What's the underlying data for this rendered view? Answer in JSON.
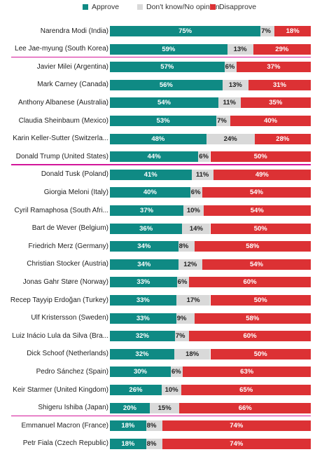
{
  "legend": [
    {
      "label": "Approve",
      "color": "#0f8a84"
    },
    {
      "label": "Don't know/No opinion",
      "color": "#d9d9d9"
    },
    {
      "label": "Disapprove",
      "color": "#dc3134"
    }
  ],
  "highlight_color": "#d3169a",
  "chart_data": {
    "type": "bar",
    "stacked": true,
    "orientation": "horizontal",
    "xlim": [
      0,
      100
    ],
    "categories": [
      "Narendra Modi (India)",
      "Lee Jae-myung (South Korea)",
      "Javier Milei (Argentina)",
      "Mark Carney (Canada)",
      "Anthony Albanese (Australia)",
      "Claudia Sheinbaum (Mexico)",
      "Karin Keller-Sutter (Switzerla...",
      "Donald Trump (United States)",
      "Donald Tusk (Poland)",
      "Giorgia Meloni (Italy)",
      "Cyril Ramaphosa (South Afri...",
      "Bart de Wever (Belgium)",
      "Friedrich Merz (Germany)",
      "Christian Stocker (Austria)",
      "Jonas Gahr Støre (Norway)",
      "Recep Tayyip Erdoğan (Turkey)",
      "Ulf Kristersson (Sweden)",
      "Luiz Inácio Lula da Silva (Bra...",
      "Dick Schoof (Netherlands)",
      "Pedro Sánchez (Spain)",
      "Keir Starmer (United Kingdom)",
      "Shigeru Ishiba (Japan)",
      "Emmanuel Macron (France)",
      "Petr Fiala (Czech Republic)"
    ],
    "highlighted": [
      "Lee Jae-myung (South Korea)",
      "Donald Trump (United States)",
      "Shigeru Ishiba (Japan)"
    ],
    "series": [
      {
        "name": "Approve",
        "values": [
          75,
          59,
          57,
          56,
          54,
          53,
          48,
          44,
          41,
          40,
          37,
          36,
          34,
          34,
          33,
          33,
          33,
          32,
          32,
          30,
          26,
          20,
          18,
          18
        ]
      },
      {
        "name": "Don't know/No opinion",
        "values": [
          7,
          13,
          6,
          13,
          11,
          7,
          24,
          6,
          11,
          6,
          10,
          14,
          8,
          12,
          6,
          17,
          9,
          7,
          18,
          6,
          10,
          15,
          8,
          8
        ]
      },
      {
        "name": "Disapprove",
        "values": [
          18,
          29,
          37,
          31,
          35,
          40,
          28,
          50,
          49,
          54,
          54,
          50,
          58,
          54,
          60,
          50,
          58,
          60,
          50,
          63,
          65,
          66,
          74,
          74
        ]
      }
    ]
  }
}
